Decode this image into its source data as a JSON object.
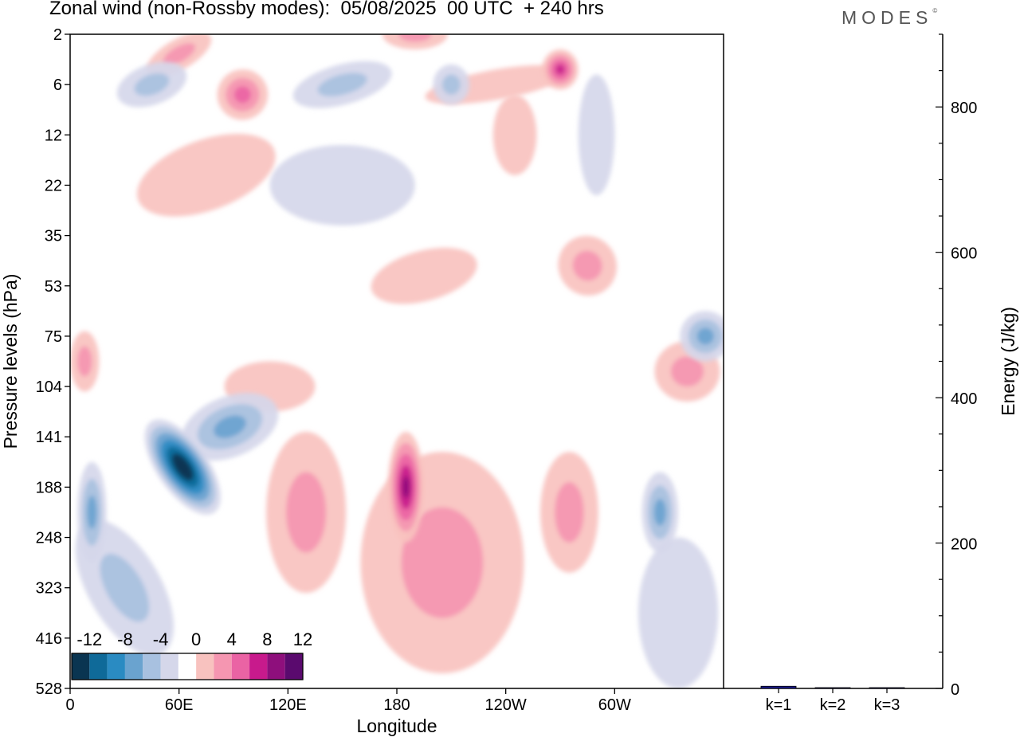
{
  "header": {
    "title": "Zonal wind (non-Rossby modes):  05/08/2025  00 UTC  + 240 hrs",
    "brand": "MODES",
    "brand_mark": "©"
  },
  "colors": {
    "scale": [
      "#0a3551",
      "#0f6a99",
      "#2a8bc2",
      "#6aa3cf",
      "#a8c1e0",
      "#d5d7ea",
      "#ffffff",
      "#f8c2bf",
      "#f596b1",
      "#ea63a4",
      "#c81a8c",
      "#8e0f7c",
      "#5a0a6e"
    ],
    "bar": "#1a1a8c",
    "axis": "#000000"
  },
  "chart_data": [
    {
      "type": "heatmap",
      "title": "Zonal wind (non-Rossby modes)",
      "xlabel": "Longitude",
      "ylabel": "Pressure levels (hPa)",
      "x_ticks": [
        "0",
        "60E",
        "120E",
        "180",
        "120W",
        "60W"
      ],
      "x_tick_values": [
        0,
        60,
        120,
        180,
        240,
        300
      ],
      "xlim": [
        0,
        360
      ],
      "y_ticks": [
        "2",
        "6",
        "12",
        "22",
        "35",
        "53",
        "75",
        "104",
        "141",
        "188",
        "248",
        "323",
        "416",
        "528"
      ],
      "colorbar": {
        "labels": [
          "-12",
          "-8",
          "-4",
          "0",
          "4",
          "8",
          "12"
        ],
        "levels": [
          -14,
          -12,
          -10,
          -8,
          -6,
          -4,
          -2,
          2,
          4,
          6,
          8,
          10,
          12,
          14
        ]
      },
      "features": [
        {
          "lon": 62,
          "lev": 8.6,
          "value": -14,
          "slx": 14,
          "sly": 1.1,
          "rot": 35
        },
        {
          "lon": 12,
          "lev": 9.5,
          "value": -7,
          "slx": 8,
          "sly": 1.0,
          "rot": 0
        },
        {
          "lon": 88,
          "lev": 7.8,
          "value": -6,
          "slx": 28,
          "sly": 0.6,
          "rot": 22
        },
        {
          "lon": 45,
          "lev": 1.0,
          "value": -5,
          "slx": 20,
          "sly": 0.4,
          "rot": 20
        },
        {
          "lon": 150,
          "lev": 1.0,
          "value": -5,
          "slx": 28,
          "sly": 0.4,
          "rot": 15
        },
        {
          "lon": 210,
          "lev": 1.0,
          "value": -4,
          "slx": 10,
          "sly": 0.4,
          "rot": 0
        },
        {
          "lon": 325,
          "lev": 9.5,
          "value": -7,
          "slx": 10,
          "sly": 0.8,
          "rot": 0
        },
        {
          "lon": 350,
          "lev": 6.0,
          "value": -6,
          "slx": 14,
          "sly": 0.5,
          "rot": 0
        },
        {
          "lon": 150,
          "lev": 3.0,
          "value": -3,
          "slx": 40,
          "sly": 0.8,
          "rot": 0
        },
        {
          "lon": 290,
          "lev": 2.0,
          "value": -3,
          "slx": 10,
          "sly": 1.2,
          "rot": 0
        },
        {
          "lon": 30,
          "lev": 11.0,
          "value": -4,
          "slx": 20,
          "sly": 1.5,
          "rot": 30
        },
        {
          "lon": 335,
          "lev": 11.5,
          "value": -3,
          "slx": 22,
          "sly": 1.5,
          "rot": 0
        },
        {
          "lon": 185,
          "lev": 9.0,
          "value": 11,
          "slx": 10,
          "sly": 1.1,
          "rot": 0
        },
        {
          "lon": 270,
          "lev": 0.7,
          "value": 9,
          "slx": 10,
          "sly": 0.4,
          "rot": 0
        },
        {
          "lon": 205,
          "lev": 10.5,
          "value": 4,
          "slx": 45,
          "sly": 2.2,
          "rot": 0
        },
        {
          "lon": 130,
          "lev": 9.5,
          "value": 4,
          "slx": 22,
          "sly": 1.6,
          "rot": 0
        },
        {
          "lon": 275,
          "lev": 9.5,
          "value": 5,
          "slx": 16,
          "sly": 1.2,
          "rot": 0
        },
        {
          "lon": 285,
          "lev": 4.6,
          "value": 5,
          "slx": 16,
          "sly": 0.6,
          "rot": 30
        },
        {
          "lon": 95,
          "lev": 1.2,
          "value": 6,
          "slx": 14,
          "sly": 0.5,
          "rot": 35
        },
        {
          "lon": 75,
          "lev": 2.8,
          "value": 3,
          "slx": 40,
          "sly": 0.7,
          "rot": 20
        },
        {
          "lon": 340,
          "lev": 6.7,
          "value": 4,
          "slx": 18,
          "sly": 0.6,
          "rot": 0
        },
        {
          "lon": 8,
          "lev": 6.5,
          "value": 4,
          "slx": 8,
          "sly": 0.6,
          "rot": 0
        },
        {
          "lon": 195,
          "lev": 4.8,
          "value": 3,
          "slx": 30,
          "sly": 0.5,
          "rot": 15
        },
        {
          "lon": 245,
          "lev": 2.0,
          "value": 3,
          "slx": 12,
          "sly": 0.8,
          "rot": 0
        },
        {
          "lon": 190,
          "lev": 0.0,
          "value": 4,
          "slx": 18,
          "sly": 0.3,
          "rot": 0
        },
        {
          "lon": 235,
          "lev": 1.0,
          "value": 3,
          "slx": 40,
          "sly": 0.3,
          "rot": 10
        },
        {
          "lon": 60,
          "lev": 0.4,
          "value": 4,
          "slx": 20,
          "sly": 0.3,
          "rot": 30
        },
        {
          "lon": 110,
          "lev": 7.0,
          "value": 3,
          "slx": 25,
          "sly": 0.5,
          "rot": 0
        }
      ]
    },
    {
      "type": "bar",
      "ylabel": "Energy (J/kg)",
      "categories": [
        "k=1",
        "k=2",
        "k=3"
      ],
      "values": [
        3,
        1,
        0.5
      ],
      "ylim": [
        0,
        900
      ],
      "y_ticks": [
        0,
        200,
        400,
        600,
        800
      ]
    }
  ]
}
